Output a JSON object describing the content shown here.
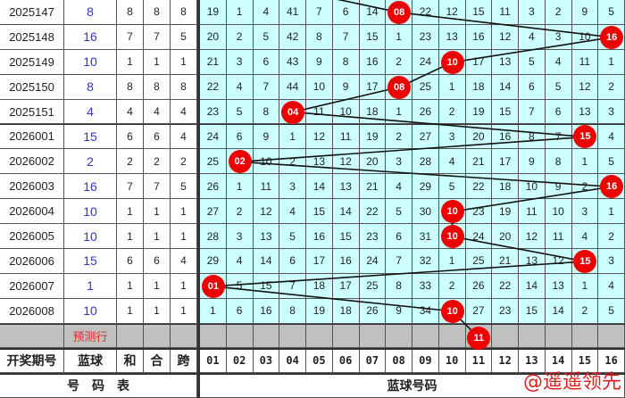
{
  "rows": [
    {
      "period": "2025147",
      "blue": "8",
      "he": "8",
      "hehe": "8",
      "kua": "8",
      "cells": [
        "19",
        "1",
        "4",
        "41",
        "7",
        "6",
        "14",
        "08",
        "22",
        "12",
        "15",
        "11",
        "3",
        "2",
        "9",
        "5"
      ],
      "hit": 8
    },
    {
      "period": "2025148",
      "blue": "16",
      "he": "7",
      "hehe": "7",
      "kua": "5",
      "cells": [
        "20",
        "2",
        "5",
        "42",
        "8",
        "7",
        "15",
        "1",
        "23",
        "13",
        "16",
        "12",
        "4",
        "3",
        "10",
        "16"
      ],
      "hit": 16
    },
    {
      "period": "2025149",
      "blue": "10",
      "he": "1",
      "hehe": "1",
      "kua": "1",
      "cells": [
        "21",
        "3",
        "6",
        "43",
        "9",
        "8",
        "16",
        "2",
        "24",
        "10",
        "17",
        "13",
        "5",
        "4",
        "11",
        "1"
      ],
      "hit": 10
    },
    {
      "period": "2025150",
      "blue": "8",
      "he": "8",
      "hehe": "8",
      "kua": "8",
      "cells": [
        "22",
        "4",
        "7",
        "44",
        "10",
        "9",
        "17",
        "08",
        "25",
        "1",
        "18",
        "14",
        "6",
        "5",
        "12",
        "2"
      ],
      "hit": 8
    },
    {
      "period": "2025151",
      "blue": "4",
      "he": "4",
      "hehe": "4",
      "kua": "4",
      "cells": [
        "23",
        "5",
        "8",
        "04",
        "11",
        "10",
        "18",
        "1",
        "26",
        "2",
        "19",
        "15",
        "7",
        "6",
        "13",
        "3"
      ],
      "hit": 4
    },
    {
      "period": "2026001",
      "blue": "15",
      "he": "6",
      "hehe": "6",
      "kua": "4",
      "cells": [
        "24",
        "6",
        "9",
        "1",
        "12",
        "11",
        "19",
        "2",
        "27",
        "3",
        "20",
        "16",
        "8",
        "7",
        "15",
        "4"
      ],
      "hit": 15
    },
    {
      "period": "2026002",
      "blue": "2",
      "he": "2",
      "hehe": "2",
      "kua": "2",
      "cells": [
        "25",
        "02",
        "10",
        "2",
        "13",
        "12",
        "20",
        "3",
        "28",
        "4",
        "21",
        "17",
        "9",
        "8",
        "1",
        "5"
      ],
      "hit": 2
    },
    {
      "period": "2026003",
      "blue": "16",
      "he": "7",
      "hehe": "7",
      "kua": "5",
      "cells": [
        "26",
        "1",
        "11",
        "3",
        "14",
        "13",
        "21",
        "4",
        "29",
        "5",
        "22",
        "18",
        "10",
        "9",
        "2",
        "16"
      ],
      "hit": 16
    },
    {
      "period": "2026004",
      "blue": "10",
      "he": "1",
      "hehe": "1",
      "kua": "1",
      "cells": [
        "27",
        "2",
        "12",
        "4",
        "15",
        "14",
        "22",
        "5",
        "30",
        "10",
        "23",
        "19",
        "11",
        "10",
        "3",
        "1"
      ],
      "hit": 10
    },
    {
      "period": "2026005",
      "blue": "10",
      "he": "1",
      "hehe": "1",
      "kua": "1",
      "cells": [
        "28",
        "3",
        "13",
        "5",
        "16",
        "15",
        "23",
        "6",
        "31",
        "10",
        "24",
        "20",
        "12",
        "11",
        "4",
        "2"
      ],
      "hit": 10
    },
    {
      "period": "2026006",
      "blue": "15",
      "he": "6",
      "hehe": "6",
      "kua": "4",
      "cells": [
        "29",
        "4",
        "14",
        "6",
        "17",
        "16",
        "24",
        "7",
        "32",
        "1",
        "25",
        "21",
        "13",
        "12",
        "15",
        "3"
      ],
      "hit": 15
    },
    {
      "period": "2026007",
      "blue": "1",
      "he": "1",
      "hehe": "1",
      "kua": "1",
      "cells": [
        "01",
        "5",
        "15",
        "7",
        "18",
        "17",
        "25",
        "8",
        "33",
        "2",
        "26",
        "22",
        "14",
        "13",
        "1",
        "4"
      ],
      "hit": 1
    },
    {
      "period": "2026008",
      "blue": "10",
      "he": "1",
      "hehe": "1",
      "kua": "1",
      "cells": [
        "1",
        "6",
        "16",
        "8",
        "19",
        "18",
        "26",
        "9",
        "34",
        "10",
        "27",
        "23",
        "15",
        "14",
        "2",
        "5"
      ],
      "hit": 10
    }
  ],
  "prediction": {
    "label": "预测行",
    "ball": "11",
    "hit": 11
  },
  "header": {
    "period": "开奖期号",
    "blue": "蓝球",
    "he": "和",
    "hehe": "合",
    "kua": "跨",
    "numbers": [
      "01",
      "02",
      "03",
      "04",
      "05",
      "06",
      "07",
      "08",
      "09",
      "10",
      "11",
      "12",
      "13",
      "14",
      "15",
      "16"
    ]
  },
  "footer": {
    "left": "号　码　表",
    "right": "蓝球号码"
  },
  "watermark": "@遥遥领先",
  "colors": {
    "grid_bg": "#ccffff",
    "ball": "#ee0000",
    "blue_text": "#3333cc",
    "pred_row": "#c0c0c0"
  }
}
